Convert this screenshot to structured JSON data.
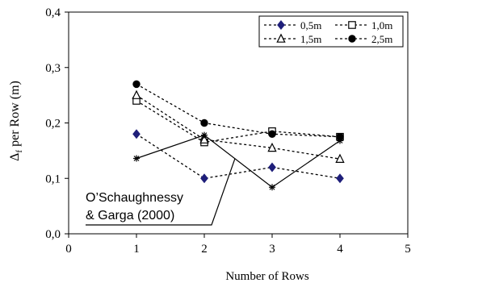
{
  "chart_data": {
    "type": "line",
    "xlabel": "Number of Rows",
    "ylabel_main": "Δ",
    "ylabel_sub": "f",
    "ylabel_rest": " per Row (m)",
    "xlim": [
      0,
      5
    ],
    "ylim": [
      0,
      0.4
    ],
    "xticks": [
      0,
      1,
      2,
      3,
      4,
      5
    ],
    "yticks": [
      0,
      0.1,
      0.2,
      0.3,
      0.4
    ],
    "xtick_labels": [
      "0",
      "1",
      "2",
      "3",
      "4",
      "5"
    ],
    "ytick_labels": [
      "0,0",
      "0,1",
      "0,2",
      "0,3",
      "0,4"
    ],
    "grid": false,
    "legend_position": "top-right",
    "series": [
      {
        "name": "0,5m",
        "marker": "diamond",
        "color": "#1f1f7a",
        "dash": true,
        "x": [
          1,
          2,
          3,
          4
        ],
        "y": [
          0.18,
          0.1,
          0.12,
          0.1
        ]
      },
      {
        "name": "1,0m",
        "marker": "square",
        "color": "#000000",
        "dash": true,
        "x": [
          1,
          2,
          3,
          4
        ],
        "y": [
          0.24,
          0.165,
          0.185,
          0.175
        ]
      },
      {
        "name": "1,5m",
        "marker": "triangle",
        "color": "#000000",
        "dash": true,
        "x": [
          1,
          2,
          3,
          4
        ],
        "y": [
          0.25,
          0.17,
          0.155,
          0.135
        ]
      },
      {
        "name": "2,5m",
        "marker": "circle",
        "color": "#000000",
        "dash": true,
        "x": [
          1,
          2,
          3,
          4
        ],
        "y": [
          0.27,
          0.2,
          0.18,
          0.175
        ]
      },
      {
        "name": "",
        "marker": "star",
        "color": "#000000",
        "dash": false,
        "x": [
          1,
          2,
          3,
          4
        ],
        "y": [
          0.136,
          0.178,
          0.084,
          0.168
        ]
      }
    ],
    "annotations": [
      {
        "lines": [
          "O’Schaughnessy",
          "& Garga (2000)"
        ]
      }
    ]
  }
}
